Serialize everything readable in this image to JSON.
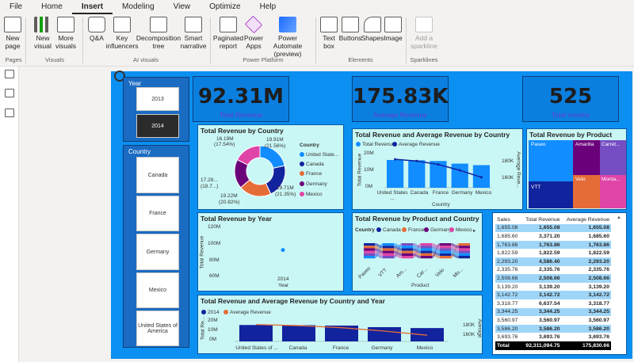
{
  "tabs": [
    "File",
    "Home",
    "Insert",
    "Modeling",
    "View",
    "Optimize",
    "Help"
  ],
  "active_tab": "Insert",
  "ribbon": {
    "new_page": "New page",
    "new_visual": "New visual",
    "more_visuals": "More visuals",
    "qa": "Q&A",
    "key_influencers": "Key influencers",
    "decomposition_tree": "Decomposition tree",
    "smart_narrative": "Smart narrative",
    "paginated_report": "Paginated report",
    "power_apps": "Power Apps",
    "power_automate": "Power Automate (preview)",
    "text_box": "Text box",
    "buttons": "Buttons",
    "shapes": "Shapes",
    "image": "Image",
    "add_sparkline": "Add a sparkline",
    "groups": {
      "pages": "Pages",
      "visuals": "Visuals",
      "ai_visuals": "AI visuals",
      "power_platform": "Power Platform",
      "elements": "Elements",
      "sparklines": "Sparklines"
    }
  },
  "slicers": {
    "year": {
      "title": "Year",
      "items": [
        "2013",
        "2014"
      ],
      "selected": "2014"
    },
    "country": {
      "title": "Country",
      "items": [
        "Canada",
        "France",
        "Germany",
        "Mexico",
        "United States of America"
      ]
    }
  },
  "cards": [
    {
      "value": "92.31M",
      "label": "Total Revenue"
    },
    {
      "value": "175.83K",
      "label": "Average Revenue"
    },
    {
      "value": "525",
      "label": "Total country"
    }
  ],
  "donut": {
    "title": "Total Revenue by Country",
    "legend_title": "Country",
    "legend": [
      "United State...",
      "Canada",
      "France",
      "Germany",
      "Mexico"
    ],
    "labels": {
      "top": "16.19M",
      "top_pct": "(17.54%)",
      "top_right": "19.91M",
      "top_right_pct": "(21.56%)",
      "left": "17.28...",
      "left_pct": "(18.7...)",
      "bottom": "19.22M",
      "bottom_pct": "(20.82%)",
      "right": "19.71M",
      "right_pct": "(21.35%)"
    },
    "colors": [
      "#118dff",
      "#12239e",
      "#e66c37",
      "#6b007b",
      "#e044a7"
    ]
  },
  "combo": {
    "title": "Total Revenue and Average Revenue by Country",
    "legend": [
      "Total Revenue",
      "Average Revenue"
    ],
    "y_left": [
      "20M",
      "10M",
      "0M"
    ],
    "y_right": [
      "180K",
      "160K"
    ],
    "y_left_label": "Total Revenue",
    "y_right_label": "Average Reve...",
    "x_label": "Country",
    "categories": [
      "United States ...",
      "Canada",
      "France",
      "Germany",
      "Mexico"
    ]
  },
  "treemap": {
    "title": "Total Revenue by Product",
    "items": [
      "Paseo",
      "Amarilla",
      "Carret...",
      "VTT",
      "Velo",
      "Monta..."
    ]
  },
  "year_chart": {
    "title": "Total Revenue by Year",
    "y_ticks": [
      "120M",
      "100M",
      "80M",
      "60M"
    ],
    "y_label": "Total Revenue",
    "x_tick": "2014",
    "x_label": "Year"
  },
  "ribbon_chart": {
    "title": "Total Revenue by Product and Country",
    "legend_title": "Country",
    "legend": [
      "Canada",
      "France",
      "Germany",
      "Mexico"
    ],
    "x_ticks": [
      "Paseo",
      "VTT",
      "Am...",
      "Car...",
      "Velo",
      "Mo..."
    ],
    "x_label": "Product"
  },
  "bottom_chart": {
    "title": "Total Revenue and Average Revenue by Country and Year",
    "legend": [
      "2014",
      "Average Revenue"
    ],
    "y_left": [
      "20M",
      "10M",
      "0M"
    ],
    "y_right": [
      "180K",
      "160K"
    ],
    "y_left_label": "Total Re...",
    "y_right_label": "Average",
    "categories": [
      "United States of ...",
      "Canada",
      "France",
      "Germany",
      "Mexico"
    ]
  },
  "table": {
    "headers": [
      "Sales",
      "Total Revenue",
      "Average Revenue"
    ],
    "rows": [
      [
        "1,655.08",
        "1,655.08",
        "1,655.08"
      ],
      [
        "1,685.60",
        "3,371.20",
        "1,685.60"
      ],
      [
        "1,763.86",
        "1,763.86",
        "1,763.86"
      ],
      [
        "1,822.59",
        "1,822.59",
        "1,822.59"
      ],
      [
        "2,293.20",
        "4,586.40",
        "2,293.20"
      ],
      [
        "2,335.76",
        "2,335.76",
        "2,335.76"
      ],
      [
        "2,508.66",
        "2,508.66",
        "2,508.66"
      ],
      [
        "3,139.20",
        "3,139.20",
        "3,139.20"
      ],
      [
        "3,142.72",
        "3,142.72",
        "3,142.72"
      ],
      [
        "3,318.77",
        "6,637.54",
        "3,318.77"
      ],
      [
        "3,344.25",
        "3,344.25",
        "3,344.25"
      ],
      [
        "3,560.97",
        "3,560.97",
        "3,560.97"
      ],
      [
        "3,586.20",
        "3,586.20",
        "3,586.20"
      ],
      [
        "3,693.76",
        "3,693.76",
        "3,693.76"
      ]
    ],
    "total": [
      "Total",
      "92,311,094.75",
      "175,830.66"
    ]
  },
  "chart_data": [
    {
      "type": "pie",
      "title": "Total Revenue by Country",
      "categories": [
        "United States of America",
        "Canada",
        "France",
        "Germany",
        "Mexico"
      ],
      "values": [
        19.91,
        19.71,
        19.22,
        17.28,
        16.19
      ],
      "percent": [
        21.56,
        21.35,
        20.82,
        18.7,
        17.54
      ]
    },
    {
      "type": "bar",
      "title": "Total Revenue and Average Revenue by Country",
      "categories": [
        "United States ...",
        "Canada",
        "France",
        "Germany",
        "Mexico"
      ],
      "series": [
        {
          "name": "Total Revenue",
          "values": [
            19.9,
            19.7,
            19.2,
            17.3,
            16.2
          ]
        },
        {
          "name": "Average Revenue",
          "values": [
            189,
            186,
            180,
            170,
            158
          ]
        }
      ],
      "xlabel": "Country",
      "ylabel": "Total Revenue"
    },
    {
      "type": "scatter",
      "title": "Total Revenue by Year",
      "x": [
        2014
      ],
      "y": [
        92.31
      ],
      "xlabel": "Year",
      "ylabel": "Total Revenue",
      "ylim": [
        60,
        120
      ]
    },
    {
      "type": "bar",
      "title": "Total Revenue and Average Revenue by Country and Year",
      "categories": [
        "United States of ...",
        "Canada",
        "France",
        "Germany",
        "Mexico"
      ],
      "series": [
        {
          "name": "2014",
          "values": [
            19.9,
            19.7,
            19.2,
            17.3,
            16.2
          ]
        },
        {
          "name": "Average Revenue",
          "values": [
            189,
            186,
            180,
            170,
            158
          ]
        }
      ]
    }
  ]
}
